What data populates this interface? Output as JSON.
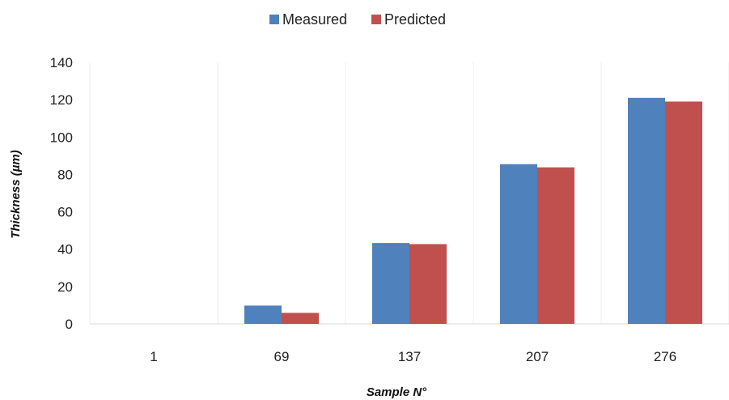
{
  "chart_data": {
    "type": "bar",
    "categories": [
      "1",
      "69",
      "137",
      "207",
      "276"
    ],
    "series": [
      {
        "name": "Measured",
        "values": [
          0,
          9.8,
          43.3,
          85.5,
          121
        ],
        "color": "#4F81BD"
      },
      {
        "name": "Predicted",
        "values": [
          0,
          5.9,
          42.7,
          83.8,
          119
        ],
        "color": "#C0504D"
      }
    ],
    "xlabel": "Sample N°",
    "ylabel": "Thickness (µm)",
    "ylim": [
      0,
      140
    ],
    "yticks": [
      0,
      20,
      40,
      60,
      80,
      100,
      120,
      140
    ],
    "grid": "vertical-category-separators",
    "legend_position": "top-center"
  }
}
